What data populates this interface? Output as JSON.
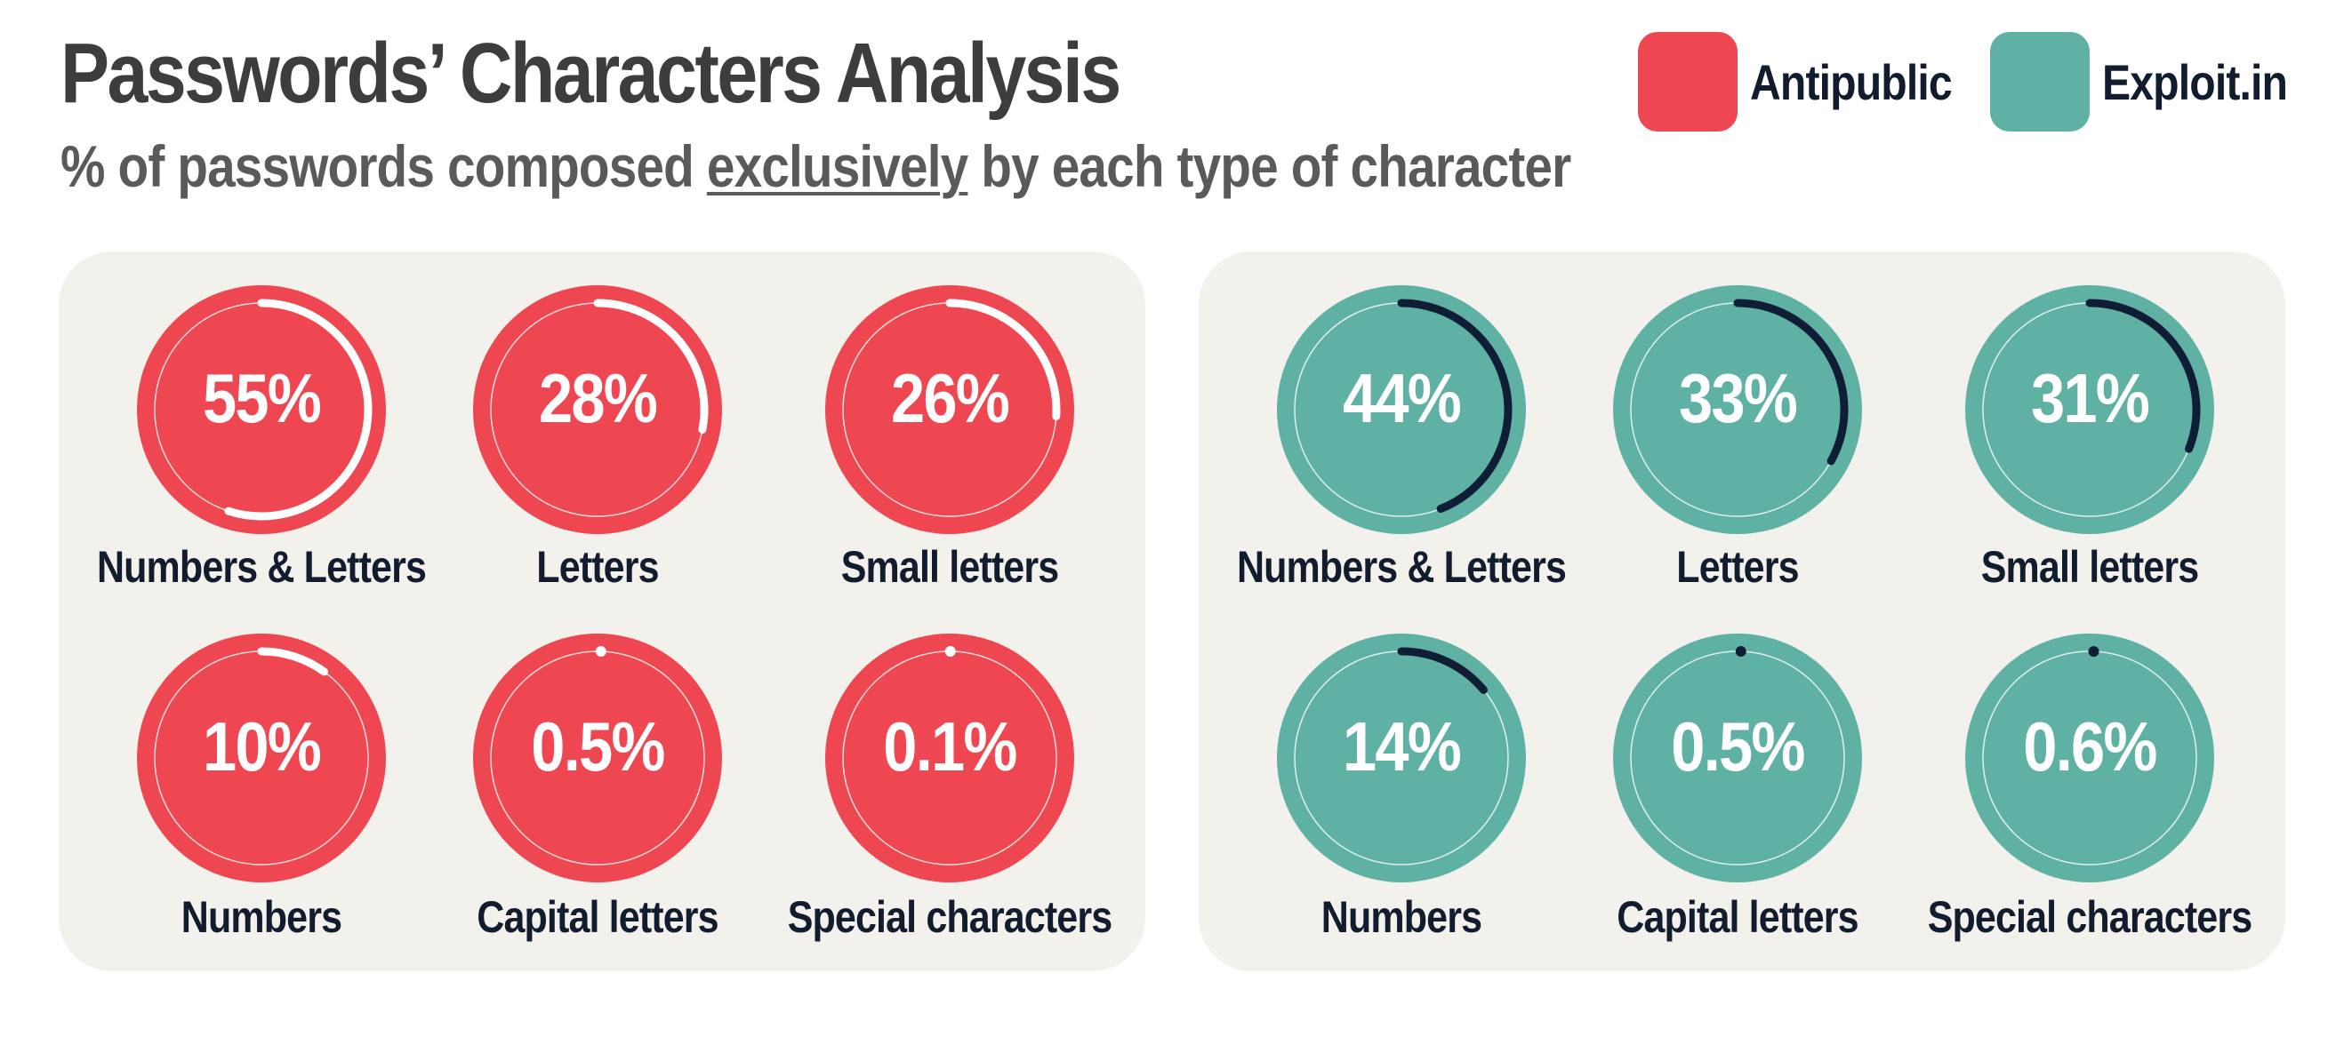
{
  "header": {
    "title": "Passwords’ Characters Analysis",
    "subtitle_pre": "% of passwords composed ",
    "subtitle_emph": "exclusively",
    "subtitle_post": " by each type of character"
  },
  "legend": [
    {
      "label": "Antipublic",
      "color": "#ef4751"
    },
    {
      "label": "Exploit.in",
      "color": "#5fb1a4"
    }
  ],
  "chart_data": [
    {
      "type": "pie",
      "series_name": "Antipublic",
      "color": "#ef4751",
      "arc_color": "#ffffff",
      "categories": [
        "Numbers & Letters",
        "Letters",
        "Small letters",
        "Numbers",
        "Capital letters",
        "Special characters"
      ],
      "values": [
        55,
        28,
        26,
        10,
        0.5,
        0.1
      ],
      "labels": [
        "55%",
        "28%",
        "26%",
        "10%",
        "0.5%",
        "0.1%"
      ]
    },
    {
      "type": "pie",
      "series_name": "Exploit.in",
      "color": "#5fb1a4",
      "arc_color": "#0f1e36",
      "categories": [
        "Numbers & Letters",
        "Letters",
        "Small letters",
        "Numbers",
        "Capital letters",
        "Special characters"
      ],
      "values": [
        44,
        33,
        31,
        14,
        0.5,
        0.6
      ],
      "labels": [
        "44%",
        "33%",
        "31%",
        "14%",
        "0.5%",
        "0.6%"
      ]
    }
  ]
}
